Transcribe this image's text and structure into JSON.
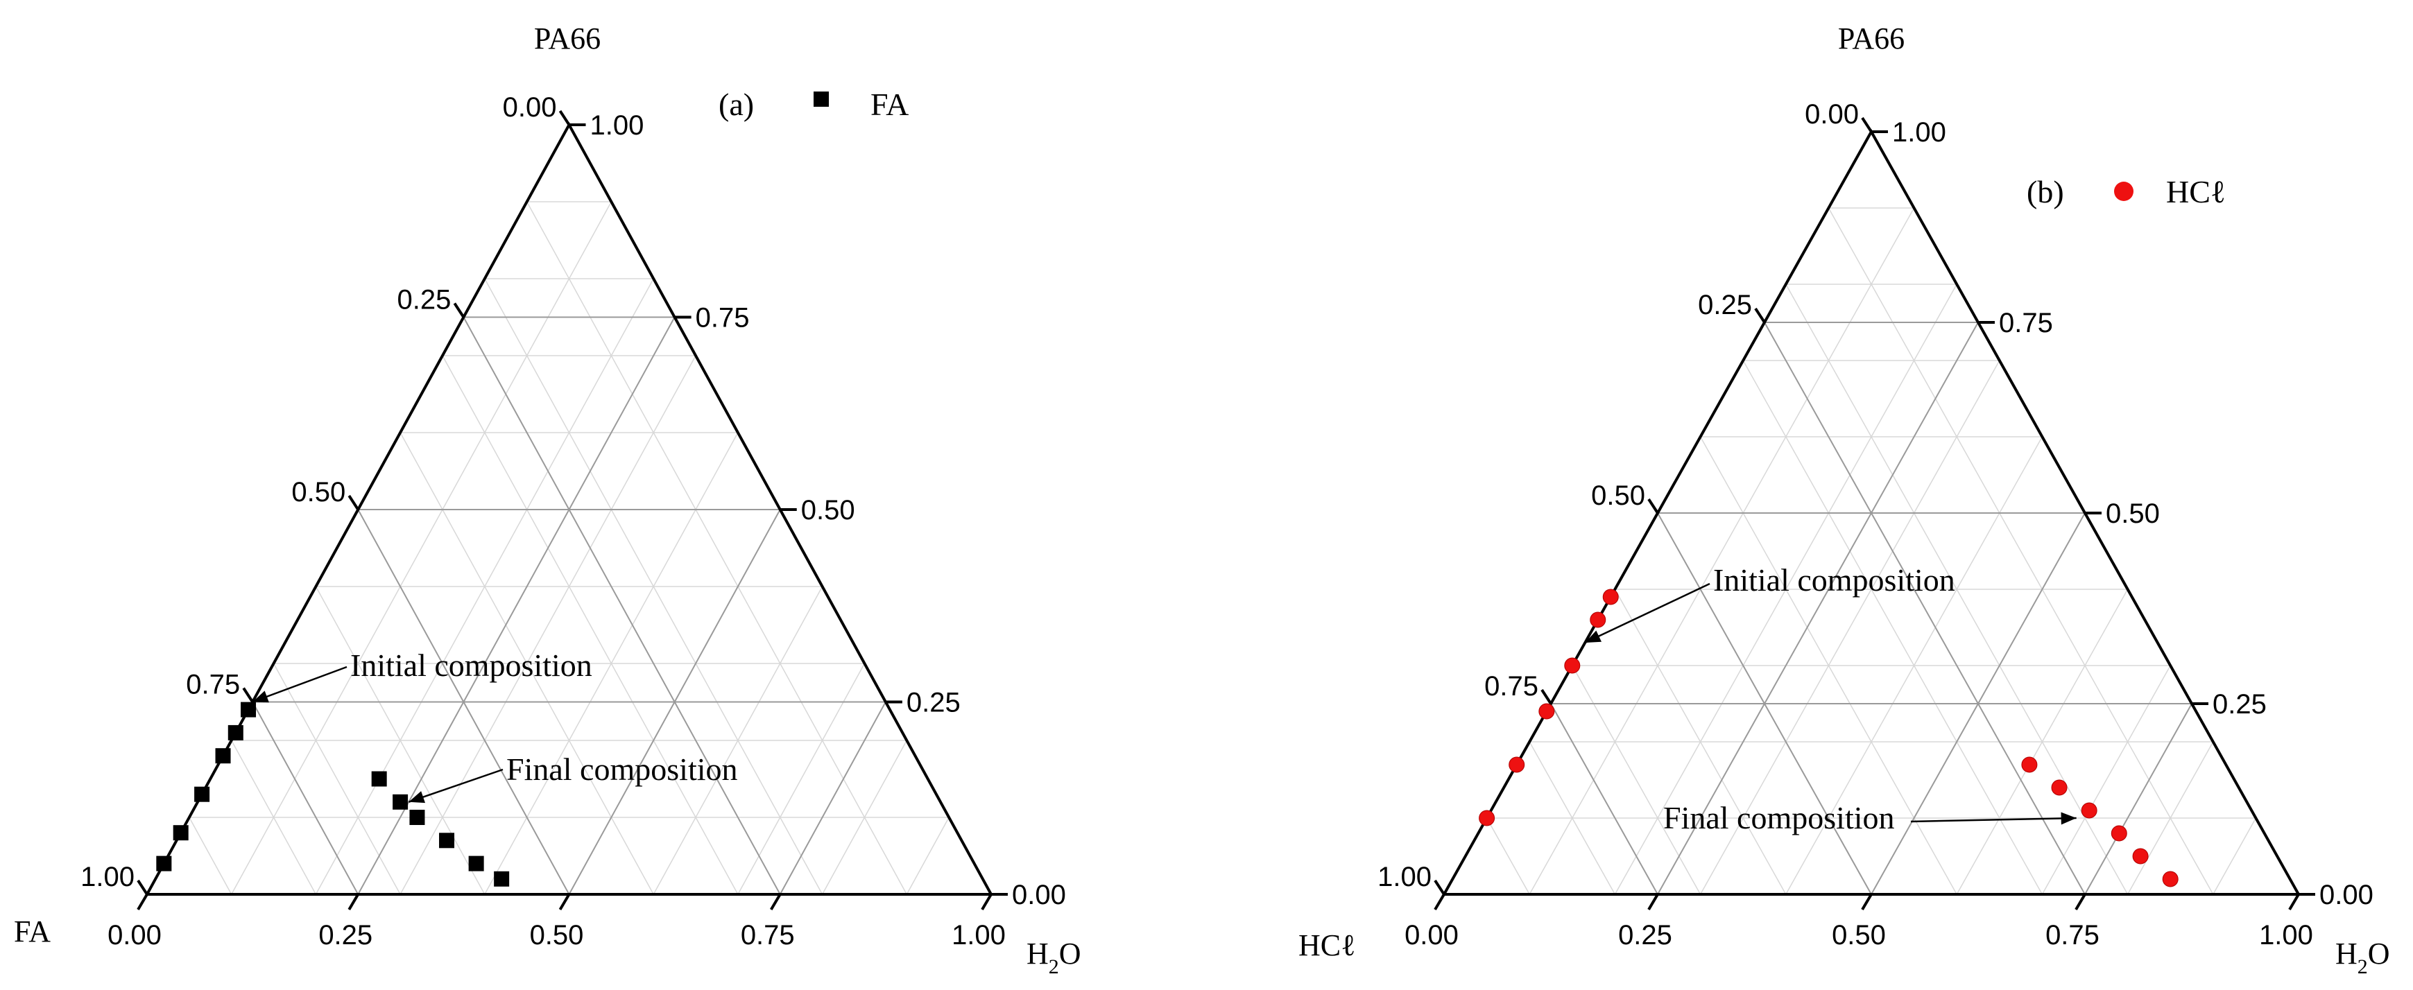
{
  "chart_data": [
    {
      "type": "ternary-scatter",
      "panel": "(a)",
      "vertices": {
        "top": "PA66",
        "left": "FA",
        "right_main": "H",
        "right_sub": "2",
        "right_tail": "O"
      },
      "ticks": [
        "0.00",
        "0.25",
        "0.50",
        "0.75",
        "1.00"
      ],
      "legend": {
        "symbol": "square",
        "label": "FA"
      },
      "marker_color": "#000000",
      "series": [
        {
          "name": "FA",
          "marker": "square",
          "points": [
            {
              "FA": 0.96,
              "PA66": 0.04,
              "H2O": 0.0
            },
            {
              "FA": 0.92,
              "PA66": 0.08,
              "H2O": 0.0
            },
            {
              "FA": 0.87,
              "PA66": 0.13,
              "H2O": 0.0
            },
            {
              "FA": 0.82,
              "PA66": 0.18,
              "H2O": 0.0
            },
            {
              "FA": 0.79,
              "PA66": 0.21,
              "H2O": 0.0
            },
            {
              "FA": 0.76,
              "PA66": 0.24,
              "H2O": 0.0
            },
            {
              "FA": 0.65,
              "PA66": 0.15,
              "H2O": 0.2
            },
            {
              "FA": 0.64,
              "PA66": 0.12,
              "H2O": 0.24
            },
            {
              "FA": 0.63,
              "PA66": 0.1,
              "H2O": 0.27
            },
            {
              "FA": 0.61,
              "PA66": 0.07,
              "H2O": 0.32
            },
            {
              "FA": 0.59,
              "PA66": 0.04,
              "H2O": 0.37
            },
            {
              "FA": 0.57,
              "PA66": 0.02,
              "H2O": 0.41
            }
          ]
        }
      ],
      "annotations": [
        {
          "text": "Initial composition",
          "point": {
            "FA": 0.75,
            "PA66": 0.25,
            "H2O": 0.0
          }
        },
        {
          "text": "Final composition",
          "point": {
            "FA": 0.63,
            "PA66": 0.12,
            "H2O": 0.25
          }
        }
      ]
    },
    {
      "type": "ternary-scatter",
      "panel": "(b)",
      "vertices": {
        "top": "PA66",
        "left": "HCℓ",
        "right_main": "H",
        "right_sub": "2",
        "right_tail": "O"
      },
      "ticks": [
        "0.00",
        "0.25",
        "0.50",
        "0.75",
        "1.00"
      ],
      "legend": {
        "symbol": "circle",
        "label": "HCℓ"
      },
      "marker_color": "#ee1111",
      "series": [
        {
          "name": "HCℓ",
          "marker": "circle",
          "points": [
            {
              "HCl": 0.9,
              "PA66": 0.1,
              "H2O": 0.0
            },
            {
              "HCl": 0.83,
              "PA66": 0.17,
              "H2O": 0.0
            },
            {
              "HCl": 0.76,
              "PA66": 0.24,
              "H2O": 0.0
            },
            {
              "HCl": 0.7,
              "PA66": 0.3,
              "H2O": 0.0
            },
            {
              "HCl": 0.64,
              "PA66": 0.36,
              "H2O": 0.0
            },
            {
              "HCl": 0.61,
              "PA66": 0.39,
              "H2O": 0.0
            },
            {
              "HCl": 0.23,
              "PA66": 0.17,
              "H2O": 0.6
            },
            {
              "HCl": 0.21,
              "PA66": 0.14,
              "H2O": 0.65
            },
            {
              "HCl": 0.19,
              "PA66": 0.11,
              "H2O": 0.7
            },
            {
              "HCl": 0.17,
              "PA66": 0.08,
              "H2O": 0.75
            },
            {
              "HCl": 0.16,
              "PA66": 0.05,
              "H2O": 0.79
            },
            {
              "HCl": 0.14,
              "PA66": 0.02,
              "H2O": 0.84
            }
          ]
        }
      ],
      "annotations": [
        {
          "text": "Initial composition",
          "point": {
            "HCl": 0.67,
            "PA66": 0.33,
            "H2O": 0.0
          }
        },
        {
          "text": "Final composition",
          "point": {
            "HCl": 0.21,
            "PA66": 0.1,
            "H2O": 0.69
          }
        }
      ]
    }
  ]
}
